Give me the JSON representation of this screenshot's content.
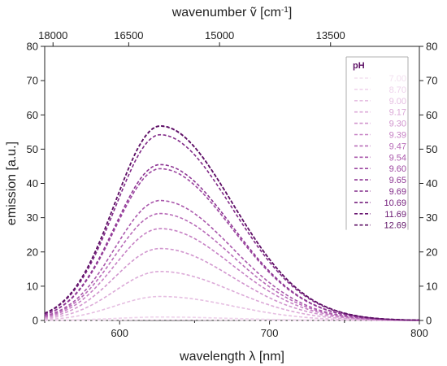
{
  "chart_data": {
    "type": "line",
    "x_label": "wavelength λ [nm]",
    "y_label": "emission [a.u.]",
    "x2_label": "wavenumber ṽ [cm",
    "x2_unit_sup": "-1",
    "x2_unit_close": "]",
    "xlim": [
      550,
      800
    ],
    "ylim": [
      0,
      80
    ],
    "x_ticks": [
      600,
      700,
      800
    ],
    "y_ticks": [
      0,
      10,
      20,
      30,
      40,
      50,
      60,
      70,
      80
    ],
    "x2_ticks": [
      {
        "value": 18000,
        "label": "18000"
      },
      {
        "value": 16500,
        "label": "16500"
      },
      {
        "value": 15000,
        "label": "15000"
      },
      {
        "value": 13500,
        "label": "13500"
      }
    ],
    "peak_wavelength": 627,
    "legend_title": "pH",
    "legend_position": "top-right",
    "line_style": "dashed",
    "series": [
      {
        "name": "7.00",
        "peak": 0.2,
        "color": "#f3e0f0"
      },
      {
        "name": "8.70",
        "peak": 1.0,
        "color": "#efd3ec"
      },
      {
        "name": "9.00",
        "peak": 7.0,
        "color": "#e6bfe2"
      },
      {
        "name": "9.17",
        "peak": 14.3,
        "color": "#dcaad8"
      },
      {
        "name": "9.30",
        "peak": 21.0,
        "color": "#d195ce"
      },
      {
        "name": "9.39",
        "peak": 26.8,
        "color": "#c680c4"
      },
      {
        "name": "9.47",
        "peak": 31.2,
        "color": "#b86cb8"
      },
      {
        "name": "9.54",
        "peak": 35.0,
        "color": "#aa58ac"
      },
      {
        "name": "9.60",
        "peak": 44.3,
        "color": "#9c46a0"
      },
      {
        "name": "9.65",
        "peak": 45.5,
        "color": "#8e3694"
      },
      {
        "name": "9.69",
        "peak": 54.2,
        "color": "#812a88"
      },
      {
        "name": "10.69",
        "peak": 56.8,
        "color": "#75207d"
      },
      {
        "name": "11.69",
        "peak": 56.8,
        "color": "#6a1872"
      },
      {
        "name": "12.69",
        "peak": 56.7,
        "color": "#5e1266"
      }
    ]
  }
}
